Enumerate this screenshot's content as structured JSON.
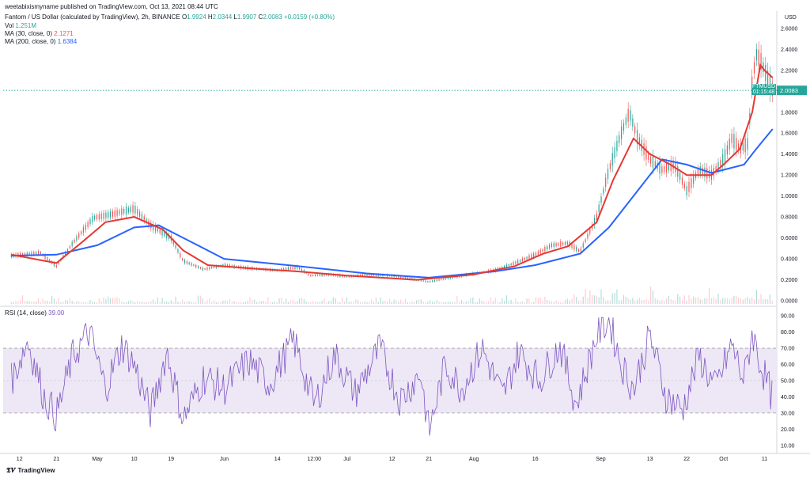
{
  "publisher_line": "weetabixismyname published on TradingView.com, Oct 13, 2021 08:44 UTC",
  "header": {
    "title": "Fantom / US Dollar (calculated by TradingView), 2h, BINANCE",
    "ohlc": {
      "o_label": "O",
      "o": "1.9924",
      "h_label": "H",
      "h": "2.0344",
      "l_label": "L",
      "l": "1.9907",
      "c_label": "C",
      "c": "2.0083",
      "change": "+0.0159 (+0.80%)"
    },
    "vol_label": "Vol",
    "vol": "1.251M",
    "ma30_label": "MA (30, close, 0)",
    "ma30": "2.1271",
    "ma200_label": "MA (200, close, 0)",
    "ma200": "1.6384"
  },
  "price_tag": {
    "symbol": "FTMUSD",
    "price": "2.0083",
    "countdown": "01:15:48"
  },
  "rsi_label": "RSI (14, close)",
  "rsi_value": "39.00",
  "footer_brand": "TradingView",
  "colors": {
    "up": "#26a69a",
    "down": "#ef5350",
    "ma30": "#e53935",
    "ma200": "#2962ff",
    "rsi": "#7e57c2",
    "rsi_band": "#ede7f6"
  },
  "chart_data": [
    {
      "type": "line",
      "title": "Fantom / US Dollar (calculated by TradingView), 2h, BINANCE",
      "y_unit": "USD",
      "ylim": [
        -0.03,
        2.72
      ],
      "y_ticks": [
        "2.6000",
        "2.4000",
        "2.2000",
        "2.0000",
        "1.8000",
        "1.6000",
        "1.4000",
        "1.2000",
        "1.0000",
        "0.8000",
        "0.6000",
        "0.4000",
        "0.2000",
        "0.0000"
      ],
      "x_ticks": [
        "12",
        "21",
        "May",
        "10",
        "19",
        "Jun",
        "14",
        "12:00",
        "Jul",
        "12",
        "21",
        "Aug",
        "16",
        "Sep",
        "13",
        "22",
        "Oct",
        "11"
      ],
      "x_tick_dates": [
        "2021-04-12",
        "2021-04-21",
        "2021-05-01",
        "2021-05-10",
        "2021-05-19",
        "2021-06-01",
        "2021-06-14",
        "2021-06-23",
        "2021-07-01",
        "2021-07-12",
        "2021-07-21",
        "2021-08-01",
        "2021-08-16",
        "2021-09-01",
        "2021-09-13",
        "2021-09-22",
        "2021-10-01",
        "2021-10-11"
      ],
      "series": [
        {
          "name": "FTMUSD",
          "dates": [
            "2021-04-10",
            "2021-04-17",
            "2021-04-21",
            "2021-04-25",
            "2021-04-30",
            "2021-05-05",
            "2021-05-10",
            "2021-05-14",
            "2021-05-19",
            "2021-05-22",
            "2021-05-27",
            "2021-06-01",
            "2021-06-07",
            "2021-06-14",
            "2021-06-19",
            "2021-06-22",
            "2021-06-27",
            "2021-07-01",
            "2021-07-06",
            "2021-07-12",
            "2021-07-18",
            "2021-07-21",
            "2021-07-25",
            "2021-08-01",
            "2021-08-06",
            "2021-08-11",
            "2021-08-16",
            "2021-08-20",
            "2021-08-24",
            "2021-08-27",
            "2021-08-31",
            "2021-09-03",
            "2021-09-06",
            "2021-09-08",
            "2021-09-10",
            "2021-09-13",
            "2021-09-16",
            "2021-09-19",
            "2021-09-22",
            "2021-09-25",
            "2021-09-28",
            "2021-10-01",
            "2021-10-03",
            "2021-10-05",
            "2021-10-07",
            "2021-10-08",
            "2021-10-09",
            "2021-10-10",
            "2021-10-11",
            "2021-10-12",
            "2021-10-13"
          ],
          "values": [
            0.43,
            0.46,
            0.33,
            0.55,
            0.79,
            0.83,
            0.88,
            0.72,
            0.6,
            0.38,
            0.3,
            0.34,
            0.31,
            0.29,
            0.32,
            0.24,
            0.25,
            0.23,
            0.25,
            0.24,
            0.2,
            0.18,
            0.21,
            0.26,
            0.29,
            0.36,
            0.44,
            0.53,
            0.55,
            0.47,
            0.8,
            1.25,
            1.6,
            1.8,
            1.55,
            1.35,
            1.25,
            1.3,
            1.05,
            1.25,
            1.2,
            1.35,
            1.55,
            1.45,
            1.5,
            2.1,
            2.35,
            2.3,
            2.2,
            2.1,
            2.01
          ]
        },
        {
          "name": "MA (30, close, 0)",
          "dates": [
            "2021-04-10",
            "2021-04-21",
            "2021-04-27",
            "2021-05-03",
            "2021-05-10",
            "2021-05-17",
            "2021-05-22",
            "2021-05-28",
            "2021-06-07",
            "2021-06-19",
            "2021-07-01",
            "2021-07-18",
            "2021-08-01",
            "2021-08-11",
            "2021-08-18",
            "2021-08-24",
            "2021-08-31",
            "2021-09-04",
            "2021-09-09",
            "2021-09-13",
            "2021-09-18",
            "2021-09-22",
            "2021-09-28",
            "2021-10-01",
            "2021-10-05",
            "2021-10-08",
            "2021-10-10",
            "2021-10-11",
            "2021-10-13"
          ],
          "values": [
            0.44,
            0.36,
            0.55,
            0.75,
            0.8,
            0.68,
            0.48,
            0.34,
            0.31,
            0.28,
            0.24,
            0.2,
            0.25,
            0.33,
            0.45,
            0.52,
            0.75,
            1.15,
            1.55,
            1.4,
            1.3,
            1.2,
            1.2,
            1.3,
            1.45,
            1.8,
            2.25,
            2.2,
            2.13
          ]
        },
        {
          "name": "MA (200, close, 0)",
          "dates": [
            "2021-04-10",
            "2021-04-21",
            "2021-05-01",
            "2021-05-10",
            "2021-05-16",
            "2021-05-22",
            "2021-06-01",
            "2021-06-19",
            "2021-07-06",
            "2021-07-21",
            "2021-08-06",
            "2021-08-16",
            "2021-08-27",
            "2021-09-03",
            "2021-09-10",
            "2021-09-16",
            "2021-09-22",
            "2021-09-28",
            "2021-10-01",
            "2021-10-06",
            "2021-10-09",
            "2021-10-13"
          ],
          "values": [
            0.43,
            0.44,
            0.53,
            0.7,
            0.72,
            0.6,
            0.4,
            0.33,
            0.26,
            0.22,
            0.28,
            0.34,
            0.45,
            0.7,
            1.05,
            1.35,
            1.3,
            1.22,
            1.25,
            1.3,
            1.45,
            1.64
          ]
        }
      ],
      "last_price_line": 2.0083
    },
    {
      "type": "line",
      "title": "RSI (14, close)",
      "ylim": [
        5,
        93
      ],
      "y_ticks": [
        "90.00",
        "80.00",
        "70.00",
        "60.00",
        "50.00",
        "40.00",
        "30.00",
        "20.00",
        "10.00"
      ],
      "bands": [
        30,
        70
      ],
      "midline": 50,
      "series": [
        {
          "name": "RSI (14, close)",
          "dates": [
            "2021-04-10",
            "2021-04-14",
            "2021-04-18",
            "2021-04-21",
            "2021-04-25",
            "2021-04-29",
            "2021-05-03",
            "2021-05-07",
            "2021-05-10",
            "2021-05-14",
            "2021-05-18",
            "2021-05-22",
            "2021-05-27",
            "2021-06-01",
            "2021-06-07",
            "2021-06-12",
            "2021-06-18",
            "2021-06-23",
            "2021-06-28",
            "2021-07-03",
            "2021-07-09",
            "2021-07-14",
            "2021-07-19",
            "2021-07-21",
            "2021-07-25",
            "2021-07-29",
            "2021-08-03",
            "2021-08-08",
            "2021-08-12",
            "2021-08-17",
            "2021-08-22",
            "2021-08-26",
            "2021-08-31",
            "2021-09-03",
            "2021-09-06",
            "2021-09-09",
            "2021-09-13",
            "2021-09-17",
            "2021-09-21",
            "2021-09-25",
            "2021-09-29",
            "2021-10-03",
            "2021-10-06",
            "2021-10-08",
            "2021-10-10",
            "2021-10-13"
          ],
          "values": [
            50,
            75,
            40,
            28,
            65,
            80,
            45,
            72,
            60,
            30,
            68,
            26,
            52,
            45,
            62,
            48,
            75,
            35,
            66,
            42,
            70,
            38,
            55,
            18,
            60,
            45,
            70,
            40,
            68,
            50,
            72,
            35,
            78,
            88,
            60,
            45,
            78,
            40,
            32,
            65,
            45,
            72,
            50,
            80,
            60,
            39
          ]
        }
      ]
    }
  ]
}
